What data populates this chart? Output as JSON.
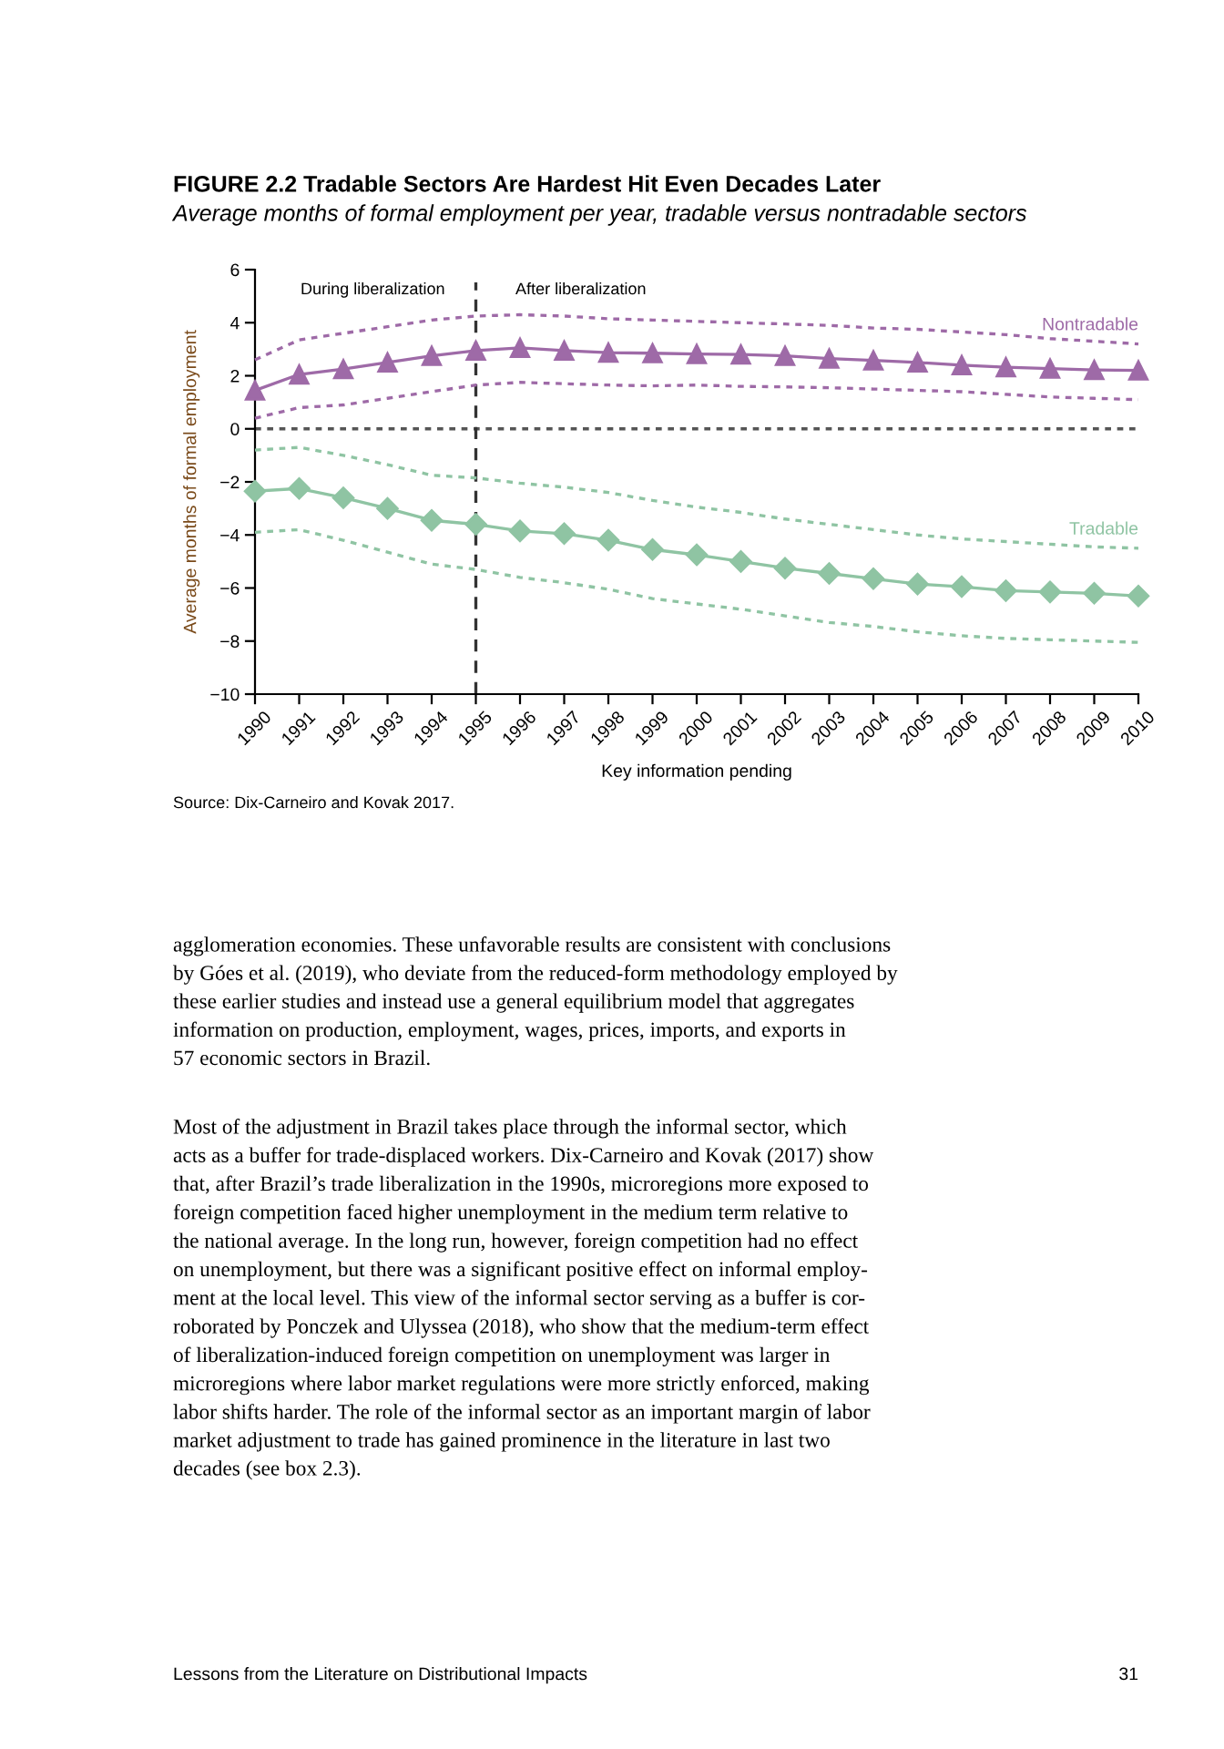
{
  "chart_data": {
    "type": "line",
    "title": "FIGURE 2.2 Tradable Sectors Are Hardest Hit Even Decades Later",
    "subtitle": "Average months of formal employment per year, tradable versus nontradable sectors",
    "xlabel": "Key information pending",
    "ylabel": "Average months of formal employment",
    "x": [
      1990,
      1991,
      1992,
      1993,
      1994,
      1995,
      1996,
      1997,
      1998,
      1999,
      2000,
      2001,
      2002,
      2003,
      2004,
      2005,
      2006,
      2007,
      2008,
      2009,
      2010
    ],
    "xlim": [
      1990,
      2010
    ],
    "xticks": [
      1990,
      1991,
      1992,
      1993,
      1994,
      1995,
      1996,
      1997,
      1998,
      1999,
      2000,
      2001,
      2002,
      2003,
      2004,
      2005,
      2006,
      2007,
      2008,
      2009,
      2010
    ],
    "ylim": [
      -10,
      6
    ],
    "yticks": [
      {
        "value": -10,
        "label": "−10"
      },
      {
        "value": -8,
        "label": "−8"
      },
      {
        "value": -6,
        "label": "−6"
      },
      {
        "value": -4,
        "label": "−4"
      },
      {
        "value": -2,
        "label": "−2"
      },
      0,
      2,
      4,
      6
    ],
    "grid": false,
    "legend": false,
    "line_style": "solid",
    "series": [
      {
        "name": "Nontradable",
        "color": "#9e6aa7",
        "marker": "triangle",
        "values": [
          1.45,
          2.05,
          2.25,
          2.5,
          2.75,
          2.95,
          3.05,
          2.95,
          2.87,
          2.85,
          2.82,
          2.8,
          2.75,
          2.65,
          2.58,
          2.5,
          2.4,
          2.32,
          2.27,
          2.22,
          2.2
        ]
      },
      {
        "color": "#9e6aa7",
        "marker": "none",
        "line_style": "dotted",
        "values": [
          2.6,
          3.35,
          3.6,
          3.85,
          4.1,
          4.25,
          4.3,
          4.25,
          4.15,
          4.1,
          4.05,
          4.0,
          3.95,
          3.9,
          3.8,
          3.75,
          3.65,
          3.55,
          3.4,
          3.3,
          3.2
        ]
      },
      {
        "color": "#9e6aa7",
        "marker": "none",
        "line_style": "dotted",
        "values": [
          0.4,
          0.8,
          0.9,
          1.15,
          1.4,
          1.65,
          1.75,
          1.7,
          1.65,
          1.62,
          1.65,
          1.6,
          1.58,
          1.55,
          1.5,
          1.45,
          1.4,
          1.3,
          1.2,
          1.15,
          1.1
        ]
      },
      {
        "name": "Tradable",
        "color": "#8fc4a3",
        "marker": "diamond",
        "values": [
          -2.35,
          -2.25,
          -2.6,
          -3.0,
          -3.45,
          -3.6,
          -3.85,
          -3.95,
          -4.2,
          -4.55,
          -4.75,
          -5.0,
          -5.25,
          -5.45,
          -5.65,
          -5.85,
          -5.95,
          -6.1,
          -6.15,
          -6.2,
          -6.3
        ]
      },
      {
        "color": "#8fc4a3",
        "marker": "none",
        "line_style": "dotted",
        "values": [
          -0.8,
          -0.7,
          -1.0,
          -1.35,
          -1.75,
          -1.85,
          -2.05,
          -2.2,
          -2.4,
          -2.7,
          -2.95,
          -3.15,
          -3.4,
          -3.6,
          -3.8,
          -4.0,
          -4.15,
          -4.25,
          -4.35,
          -4.45,
          -4.5
        ]
      },
      {
        "color": "#8fc4a3",
        "marker": "none",
        "line_style": "dotted",
        "values": [
          -3.9,
          -3.8,
          -4.2,
          -4.65,
          -5.1,
          -5.3,
          -5.6,
          -5.8,
          -6.05,
          -6.4,
          -6.6,
          -6.8,
          -7.05,
          -7.3,
          -7.45,
          -7.65,
          -7.8,
          -7.9,
          -7.95,
          -8.0,
          -8.05
        ]
      }
    ],
    "ref_lines": [
      {
        "axis": "y",
        "value": 0,
        "color": "#555555",
        "line_style": "dotted"
      },
      {
        "axis": "x",
        "value": 1995,
        "color": "#333333",
        "line_style": "dashed"
      }
    ],
    "annotations": [
      "During liberalization",
      "After liberalization",
      "Source: Dix-Carneiro and Kovak 2017.",
      "agglomeration economies. These unfavorable results are consistent with conclusions\nby Góes et al. (2019), who deviate from the reduced-form methodology employed by\nthese earlier studies and instead use a general equilibrium model that aggregates\ninformation on production, employment, wages, prices, imports, and exports in\n57 economic sectors in Brazil.",
      "Most of the adjustment in Brazil takes place through the informal sector, which\nacts as a buffer for trade-displaced workers. Dix-Carneiro and Kovak (2017) show\nthat, after Brazil’s trade liberalization in the 1990s, microregions more exposed to\nforeign competition faced higher unemployment in the medium term relative to\nthe national average. In the long run, however, foreign competition had no effect\non unemployment, but there was a significant positive effect on informal employ-\nment at the local level. This view of the informal sector serving as a buffer is cor-\nroborated by Ponczek and Ulyssea (2018), who show that the medium-term effect\nof liberalization-induced foreign competition on unemployment was larger in\nmicroregions where labor market regulations were more strictly enforced, making\nlabor shifts harder. The role of the informal sector as an important margin of labor\nmarket adjustment to trade has gained prominence in the literature in last two\ndecades (see box 2.3).",
      "Lessons from the Literature on Distributional Impacts",
      "31"
    ]
  }
}
